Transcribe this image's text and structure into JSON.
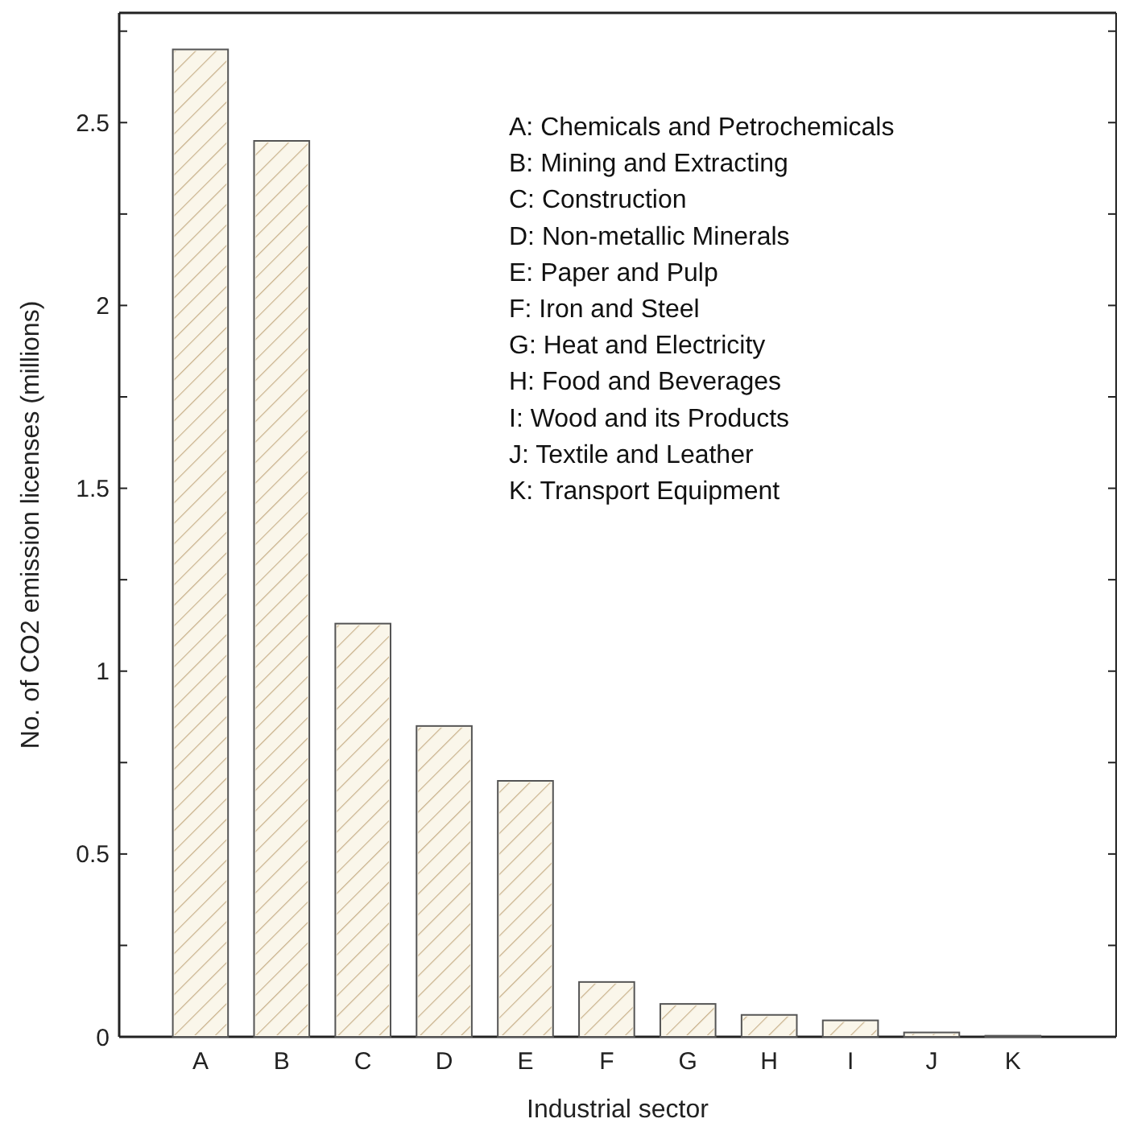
{
  "chart_data": {
    "type": "bar",
    "xlabel": "Industrial sector",
    "ylabel": "No. of CO2 emission licenses (millions)",
    "categories": [
      "A",
      "B",
      "C",
      "D",
      "E",
      "F",
      "G",
      "H",
      "I",
      "J",
      "K"
    ],
    "values": [
      2.7,
      2.45,
      1.13,
      0.85,
      0.7,
      0.15,
      0.09,
      0.06,
      0.045,
      0.012,
      0.003
    ],
    "color": "#faf6ea",
    "ylim": [
      0,
      2.8
    ],
    "yticks": [
      0,
      {
        "value": 0.25,
        "label": null
      },
      0.5,
      {
        "value": 0.75,
        "label": null
      },
      1,
      {
        "value": 1.25,
        "label": null
      },
      1.5,
      {
        "value": 1.75,
        "label": null
      },
      2,
      {
        "value": 2.25,
        "label": null
      },
      2.5,
      {
        "value": 2.75,
        "label": null
      }
    ],
    "annotations": [
      "A: Chemicals and Petrochemicals",
      "B: Mining and Extracting",
      "C: Construction",
      "D: Non-metallic Minerals",
      "E: Paper and Pulp",
      "F: Iron and Steel",
      "G: Heat and Electricity",
      "H: Food and Beverages",
      "I: Wood and its Products",
      "J: Textile and Leather",
      "K: Transport Equipment"
    ]
  }
}
